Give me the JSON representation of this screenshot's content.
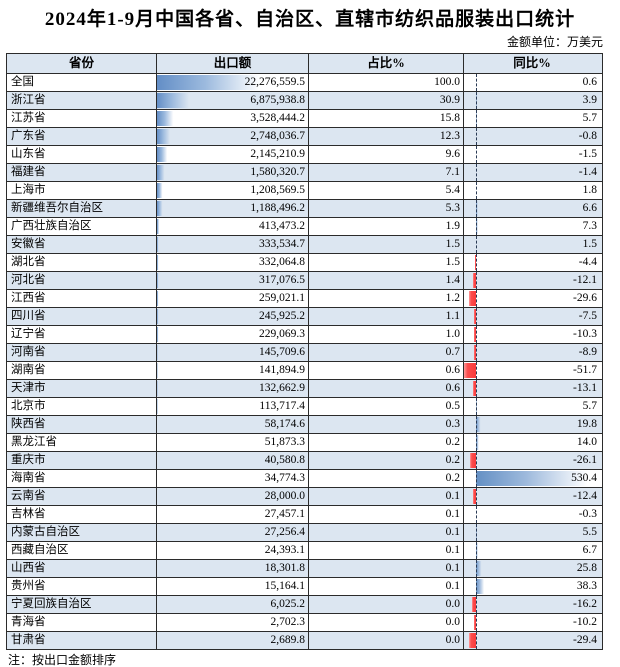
{
  "title": "2024年1-9月中国各省、自治区、直辖市纺织品服装出口统计",
  "unit_note": "金额单位：万美元",
  "footnote": "注：按出口金额排序",
  "colors": {
    "row_alt_bg": "#dce6f1",
    "header_bg": "#dce6f1",
    "data_bar_blue": "#638ec6",
    "data_bar_negative_red": "#fb3a3a",
    "border": "#2b2b2b"
  },
  "chart_data": {
    "type": "table",
    "title": "2024年1-9月中国各省、自治区、直辖市纺织品服装出口统计",
    "unit": "万美元",
    "columns": [
      "省份",
      "出口额",
      "占比%",
      "同比%"
    ],
    "note": "注：按出口金额排序",
    "visual": "出口额 column has blue gradient data bars scaled to value; 同比% column has diverging data bars (blue = positive, red = negative) around a dashed zero axis",
    "rows": [
      [
        "全国",
        "22,276,559.5",
        "100.0",
        "0.6"
      ],
      [
        "浙江省",
        "6,875,938.8",
        "30.9",
        "3.9"
      ],
      [
        "江苏省",
        "3,528,444.2",
        "15.8",
        "5.7"
      ],
      [
        "广东省",
        "2,748,036.7",
        "12.3",
        "-0.8"
      ],
      [
        "山东省",
        "2,145,210.9",
        "9.6",
        "-1.5"
      ],
      [
        "福建省",
        "1,580,320.7",
        "7.1",
        "-1.4"
      ],
      [
        "上海市",
        "1,208,569.5",
        "5.4",
        "1.8"
      ],
      [
        "新疆维吾尔自治区",
        "1,188,496.2",
        "5.3",
        "6.6"
      ],
      [
        "广西壮族自治区",
        "413,473.2",
        "1.9",
        "7.3"
      ],
      [
        "安徽省",
        "333,534.7",
        "1.5",
        "1.5"
      ],
      [
        "湖北省",
        "332,064.8",
        "1.5",
        "-4.4"
      ],
      [
        "河北省",
        "317,076.5",
        "1.4",
        "-12.1"
      ],
      [
        "江西省",
        "259,021.1",
        "1.2",
        "-29.6"
      ],
      [
        "四川省",
        "245,925.2",
        "1.1",
        "-7.5"
      ],
      [
        "辽宁省",
        "229,069.3",
        "1.0",
        "-10.3"
      ],
      [
        "河南省",
        "145,709.6",
        "0.7",
        "-8.9"
      ],
      [
        "湖南省",
        "141,894.9",
        "0.6",
        "-51.7"
      ],
      [
        "天津市",
        "132,662.9",
        "0.6",
        "-13.1"
      ],
      [
        "北京市",
        "113,717.4",
        "0.5",
        "5.7"
      ],
      [
        "陕西省",
        "58,174.6",
        "0.3",
        "19.8"
      ],
      [
        "黑龙江省",
        "51,873.3",
        "0.2",
        "14.0"
      ],
      [
        "重庆市",
        "40,580.8",
        "0.2",
        "-26.1"
      ],
      [
        "海南省",
        "34,774.3",
        "0.2",
        "530.4"
      ],
      [
        "云南省",
        "28,000.0",
        "0.1",
        "-12.4"
      ],
      [
        "吉林省",
        "27,457.1",
        "0.1",
        "-0.3"
      ],
      [
        "内蒙古自治区",
        "27,256.4",
        "0.1",
        "5.5"
      ],
      [
        "西藏自治区",
        "24,393.1",
        "0.1",
        "6.7"
      ],
      [
        "山西省",
        "18,301.8",
        "0.1",
        "25.8"
      ],
      [
        "贵州省",
        "15,164.1",
        "0.1",
        "38.3"
      ],
      [
        "宁夏回族自治区",
        "6,025.2",
        "0.0",
        "-16.2"
      ],
      [
        "青海省",
        "2,702.3",
        "0.0",
        "-10.2"
      ],
      [
        "甘肃省",
        "2,689.8",
        "0.0",
        "-29.4"
      ]
    ]
  }
}
